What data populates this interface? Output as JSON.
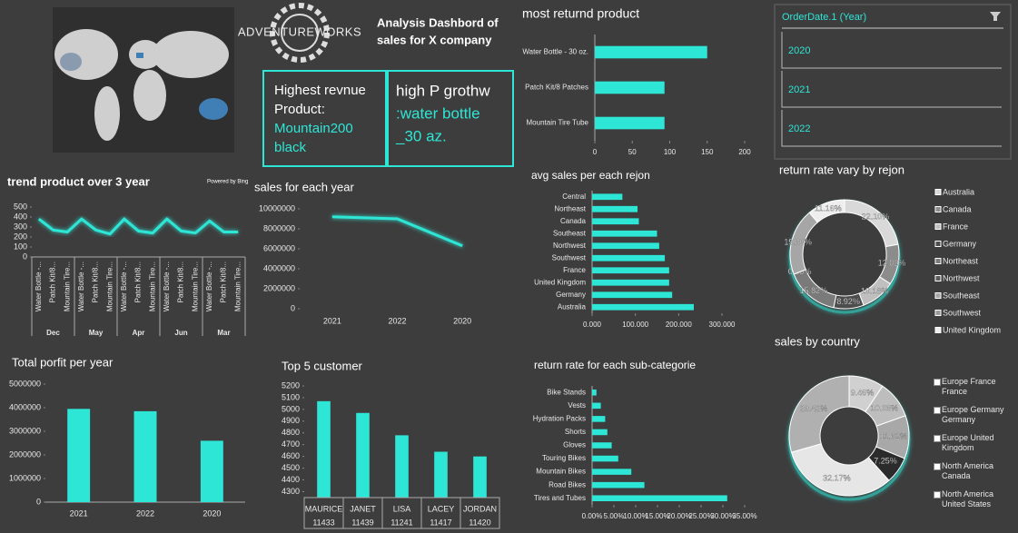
{
  "header": {
    "logo": "ADVENTUREWORKS",
    "title_lines": [
      "Analysis Dashbord of",
      "sales for X company"
    ],
    "map_credit": "Powered by Bing"
  },
  "cards": [
    {
      "label_lines": [
        "Highest revnue",
        "Product:"
      ],
      "value_lines": [
        "Mountain200",
        "black"
      ]
    },
    {
      "label_lines": [
        "high P grothw"
      ],
      "value_lines": [
        ":water bottle",
        "_30 az."
      ]
    }
  ],
  "slicer": {
    "title": "OrderDate.1 (Year)",
    "items": [
      "2020",
      "2021",
      "2022"
    ]
  },
  "chart_data": [
    {
      "type": "hbar",
      "title": "most returnd product",
      "categories": [
        "Water Bottle - 30 oz.",
        "Patch Kit/8 Patches",
        "Mountain Tire Tube"
      ],
      "values": [
        150,
        93,
        93
      ],
      "color": "#2ee6d6",
      "xlim": [
        0,
        200
      ],
      "xticks": [
        0,
        50,
        100,
        150,
        200
      ]
    },
    {
      "type": "line",
      "title": "trend product over 3 year",
      "categories": [
        "Water Bottle -...",
        "Patch Kit/8...",
        "Mountain Tire...",
        "Water Bottle -...",
        "Patch Kit/8...",
        "Mountain Tire...",
        "Water Bottle -...",
        "Patch Kit/8...",
        "Mountain Tire...",
        "Water Bottle -...",
        "Patch Kit/8...",
        "Mountain Tire...",
        "Water Bottle -...",
        "Patch Kit/8...",
        "Mountain Tire..."
      ],
      "groups": [
        "Dec",
        "May",
        "Apr",
        "Jun",
        "Mar"
      ],
      "values": [
        380,
        270,
        250,
        380,
        270,
        230,
        380,
        260,
        240,
        380,
        260,
        240,
        360,
        250,
        250
      ],
      "color": "#2ee6d6",
      "ylim": [
        0,
        500
      ],
      "yticks": [
        0,
        100,
        200,
        300,
        400,
        500
      ]
    },
    {
      "type": "line",
      "title": "sales for each year",
      "categories": [
        "2021",
        "2022",
        "2020"
      ],
      "values": [
        9200000,
        9000000,
        6300000
      ],
      "color": "#2ee6d6",
      "ylim": [
        0,
        10000000
      ],
      "yticks": [
        0,
        2000000,
        4000000,
        6000000,
        8000000,
        10000000
      ]
    },
    {
      "type": "hbar",
      "title": "avg sales per each rejon",
      "categories": [
        "Central",
        "Northeast",
        "Canada",
        "Southeast",
        "Northwest",
        "Southwest",
        "France",
        "United Kingdom",
        "Germany",
        "Australia"
      ],
      "values": [
        70000,
        105000,
        108000,
        150000,
        155000,
        168000,
        178000,
        178000,
        185000,
        235000
      ],
      "color": "#2ee6d6",
      "xlim": [
        0,
        300000
      ],
      "xticks": [
        {
          "value": 0,
          "label": "0.000"
        },
        {
          "value": 100000,
          "label": "100.000"
        },
        {
          "value": 200000,
          "label": "200.000"
        },
        {
          "value": 300000,
          "label": "300.000"
        }
      ]
    },
    {
      "type": "donut",
      "title": "return rate vary by rejon",
      "categories": [
        "Australia",
        "Canada",
        "France",
        "Germany",
        "Northeast",
        "Northwest",
        "Southeast",
        "Southwest",
        "United Kingdom"
      ],
      "values": [
        22.1,
        12.02,
        10.18,
        8.92,
        15.82,
        0.0,
        19.8,
        0,
        11.16
      ],
      "value_labels": [
        "22.10%",
        "12.02%",
        "10.18%",
        "8.92%",
        "15.82%",
        "0.00%",
        "19.80%",
        null,
        "11.16%"
      ],
      "colors": [
        "#d9d9d9",
        "#8c8c8c",
        "#bfbfbf",
        "#4d4d4d",
        "#7a7a7a",
        "#5a5a5a",
        "#a6a6a6",
        "#999999",
        "#eeeeee"
      ]
    },
    {
      "type": "donut",
      "title": "sales by country",
      "categories": [
        "Europe France France",
        "Europe Germany Germany",
        "Europe United Kingdom",
        "North America Canada",
        "North America United States",
        null
      ],
      "values": [
        9.46,
        10.08,
        11.62,
        7.25,
        32.17,
        29.42
      ],
      "value_labels": [
        "9.46%",
        "10.08%",
        "11.62%",
        "7.25%",
        "32.17%",
        "29.42%"
      ],
      "colors": [
        "#d0d0d0",
        "#bdbdbd",
        "#a8a8a8",
        "#2b2b2b",
        "#e6e6e6",
        "#b0b0b0"
      ]
    },
    {
      "type": "vbar",
      "title": "Total porfit per year",
      "categories": [
        "2021",
        "2022",
        "2020"
      ],
      "values": [
        3950000,
        3850000,
        2600000
      ],
      "color": "#2ee6d6",
      "ylim": [
        0,
        5000000
      ],
      "yticks": [
        0,
        1000000,
        2000000,
        3000000,
        4000000,
        5000000
      ]
    },
    {
      "type": "vbar",
      "title": "Top 5  customer",
      "categories": [
        "MAURICE",
        "JANET",
        "LISA",
        "LACEY",
        "JORDAN"
      ],
      "keys": [
        "11433",
        "11439",
        "11241",
        "11417",
        "11420"
      ],
      "values": [
        5070,
        4970,
        4780,
        4640,
        4600
      ],
      "color": "#2ee6d6",
      "ylim": [
        4250,
        5200
      ],
      "yticks": [
        4300,
        4400,
        4500,
        4600,
        4700,
        4800,
        4900,
        5000,
        5100,
        5200
      ]
    },
    {
      "type": "hbar",
      "title": "return rate for each sub-categorie",
      "categories": [
        "Bike Stands",
        "Vests",
        "Hydration Packs",
        "Shorts",
        "Gloves",
        "Touring Bikes",
        "Mountain Bikes",
        "Road Bikes",
        "Tires and Tubes"
      ],
      "values": [
        1.0,
        2.0,
        3.0,
        3.5,
        4.5,
        6.0,
        9.0,
        12.0,
        31.0
      ],
      "color": "#2ee6d6",
      "xlim": [
        0,
        35
      ],
      "xticks": [
        {
          "value": 0,
          "label": "0.00%"
        },
        {
          "value": 5,
          "label": "5.00%"
        },
        {
          "value": 10,
          "label": "10.00%"
        },
        {
          "value": 15,
          "label": "15.00%"
        },
        {
          "value": 20,
          "label": "20.00%"
        },
        {
          "value": 25,
          "label": "25.00%"
        },
        {
          "value": 30,
          "label": "30.00%"
        },
        {
          "value": 35,
          "label": "35.00%"
        }
      ]
    }
  ]
}
